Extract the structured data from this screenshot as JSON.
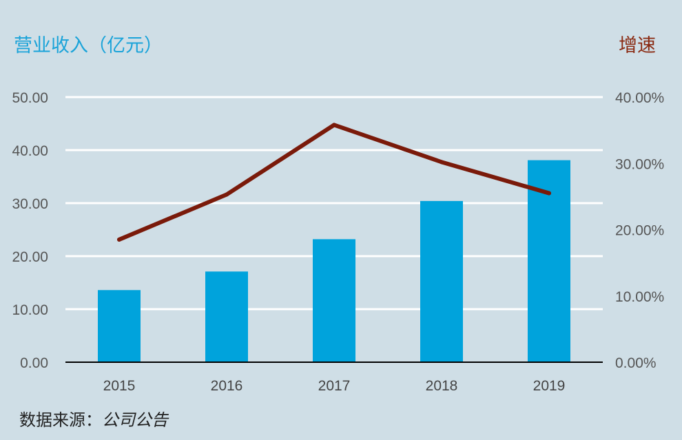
{
  "chart_data": {
    "type": "bar+line",
    "left_axis_title": "营业收入（亿元）",
    "right_axis_title": "增速",
    "categories": [
      "2015",
      "2016",
      "2017",
      "2018",
      "2019"
    ],
    "series": [
      {
        "name": "营业收入（亿元）",
        "type": "bar",
        "axis": "left",
        "color": "#00a3dc",
        "values": [
          13.6,
          17.1,
          23.2,
          30.4,
          38.1
        ]
      },
      {
        "name": "增速",
        "type": "line",
        "axis": "right",
        "color": "#7a1a0a",
        "values": [
          18.5,
          25.3,
          35.8,
          30.2,
          25.5
        ]
      }
    ],
    "left_ylim": [
      0,
      50
    ],
    "left_ticks": [
      "0.00",
      "10.00",
      "20.00",
      "30.00",
      "40.00",
      "50.00"
    ],
    "right_ylim": [
      0,
      40
    ],
    "right_ticks": [
      "0.00%",
      "10.00%",
      "20.00%",
      "30.00%",
      "40.00%"
    ],
    "grid": true
  },
  "source": {
    "label": "数据来源：",
    "value": "公司公告"
  }
}
